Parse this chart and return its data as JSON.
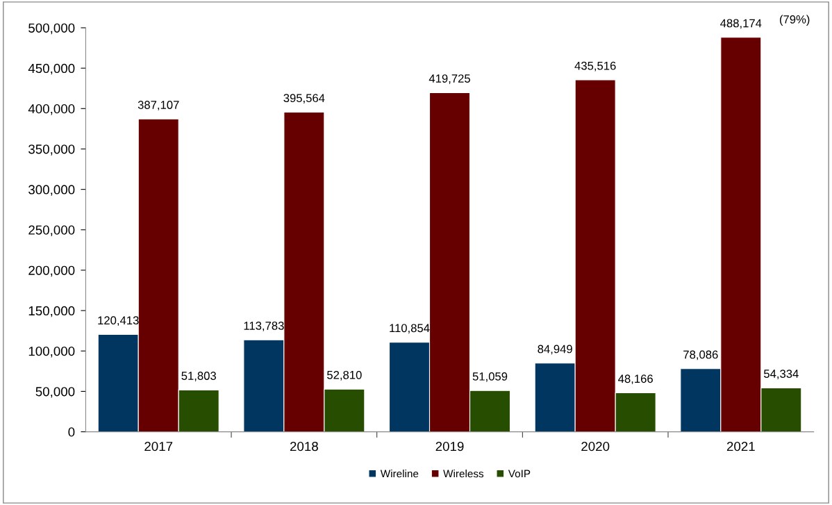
{
  "chart_data": {
    "type": "bar",
    "categories": [
      "2017",
      "2018",
      "2019",
      "2020",
      "2021"
    ],
    "series": [
      {
        "name": "Wireline",
        "color": "#003660",
        "values": [
          120413,
          113783,
          110854,
          84949,
          78086
        ],
        "value_labels": [
          "120,413",
          "113,783",
          "110,854",
          "84,949",
          "78,086"
        ]
      },
      {
        "name": "Wireless",
        "color": "#660000",
        "values": [
          387107,
          395564,
          419725,
          435516,
          488174
        ],
        "value_labels": [
          "387,107",
          "395,564",
          "419,725",
          "435,516",
          "488,174"
        ]
      },
      {
        "name": "VoIP",
        "color": "#274e00",
        "values": [
          51803,
          52810,
          51059,
          48166,
          54334
        ],
        "value_labels": [
          "51,803",
          "52,810",
          "51,059",
          "48,166",
          "54,334"
        ]
      }
    ],
    "ylim": [
      0,
      500000
    ],
    "yticks": [
      {
        "value": 0,
        "label": "0"
      },
      {
        "value": 50000,
        "label": "50,000"
      },
      {
        "value": 100000,
        "label": "100,000"
      },
      {
        "value": 150000,
        "label": "150,000"
      },
      {
        "value": 200000,
        "label": "200,000"
      },
      {
        "value": 250000,
        "label": "250,000"
      },
      {
        "value": 300000,
        "label": "300,000"
      },
      {
        "value": 350000,
        "label": "350,000"
      },
      {
        "value": 400000,
        "label": "400,000"
      },
      {
        "value": 450000,
        "label": "450,000"
      },
      {
        "value": 500000,
        "label": "500,000"
      }
    ],
    "annotations": [
      "(79%)"
    ],
    "grid": false,
    "legend": "bottom"
  }
}
